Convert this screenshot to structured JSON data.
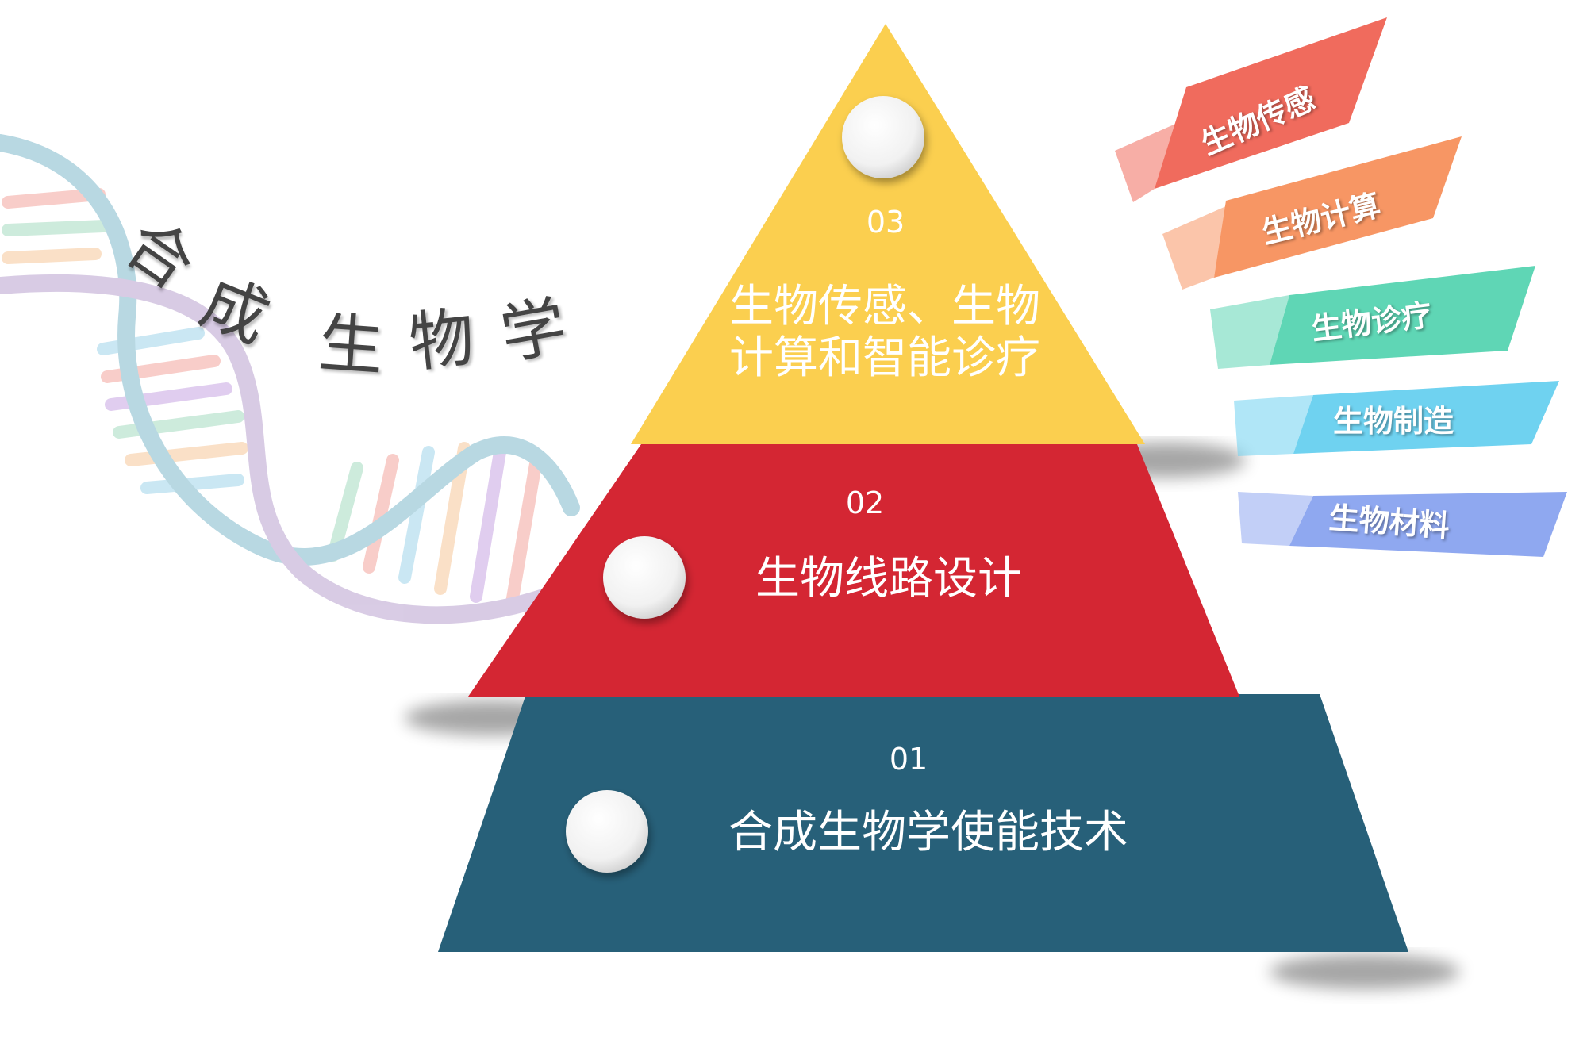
{
  "heading": [
    "合",
    "成",
    "生",
    "物",
    "学"
  ],
  "pyramid": {
    "top": {
      "number": "03",
      "title_line1": "生物传感、生物",
      "title_line2": "计算和智能诊疗",
      "color": "#FBCF4F"
    },
    "middle": {
      "number": "02",
      "title": "生物线路设计",
      "color": "#D42633"
    },
    "bottom": {
      "number": "01",
      "title": "合成生物学使能技术",
      "color": "#276079"
    }
  },
  "flags": [
    {
      "label": "生物传感",
      "color": "#F06B5D"
    },
    {
      "label": "生物计算",
      "color": "#F79664"
    },
    {
      "label": "生物诊疗",
      "color": "#5FD6B5"
    },
    {
      "label": "生物制造",
      "color": "#6FD2F0"
    },
    {
      "label": "生物材料",
      "color": "#8FA8F0"
    }
  ]
}
